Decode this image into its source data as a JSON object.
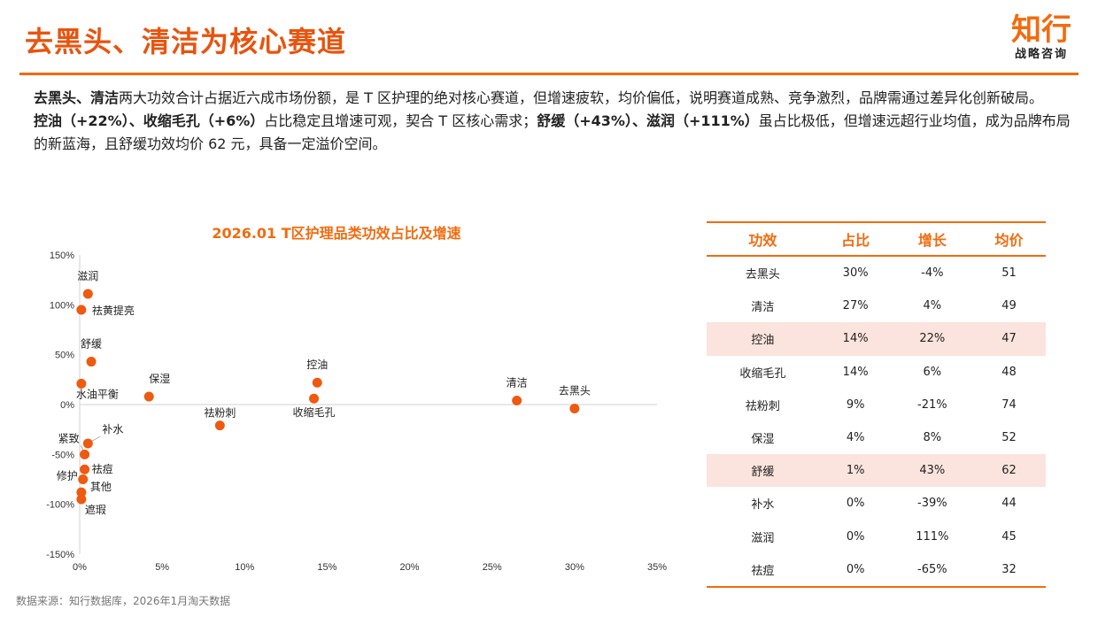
{
  "page": {
    "title": "去黑头、清洁为核心赛道",
    "logo_main": "知行",
    "logo_sub": "战略咨询",
    "summary": {
      "p1_bold": "去黑头、清洁",
      "p1_text": "两大功效合计占据近六成市场份额，是 T 区护理的绝对核心赛道，但增速疲软，均价偏低，说明赛道成熟、竞争激烈，品牌需通过差异化创新破局。",
      "p2_bold1": "控油（+22%）、收缩毛孔（+6%）",
      "p2_text1": "占比稳定且增速可观，契合 T 区核心需求；",
      "p2_bold2": "舒缓（+43%）、滋润（+111%）",
      "p2_text2": "虽占比极低，但增速远超行业均值，成为品牌布局的新蓝海，且舒缓功效均价 62 元，具备一定溢价空间。"
    },
    "source": "数据来源：知行数据库，2026年1月淘天数据"
  },
  "colors": {
    "accent": "#f26b0f",
    "title": "#e8540f",
    "dot": "#ee5a10",
    "highlight_row": "#fbe4dd"
  },
  "chart_data": {
    "type": "scatter",
    "title": "2026.01 T区护理品类功效占比及增速",
    "xlabel": "",
    "ylabel": "",
    "xlim": [
      0,
      0.35
    ],
    "ylim": [
      -1.5,
      1.5
    ],
    "x_ticks": [
      0,
      0.05,
      0.1,
      0.15,
      0.2,
      0.25,
      0.3,
      0.35
    ],
    "x_tick_labels": [
      "0%",
      "5%",
      "10%",
      "15%",
      "20%",
      "25%",
      "30%",
      "35%"
    ],
    "y_ticks": [
      1.5,
      1.0,
      0.5,
      0,
      -0.5,
      -1.0,
      -1.5
    ],
    "y_tick_labels": [
      "150%",
      "100%",
      "50%",
      "0%",
      "-50%",
      "-100%",
      "-150%"
    ],
    "points": [
      {
        "label": "去黑头",
        "x": 0.3,
        "y": -0.04
      },
      {
        "label": "清洁",
        "x": 0.265,
        "y": 0.04
      },
      {
        "label": "控油",
        "x": 0.144,
        "y": 0.22
      },
      {
        "label": "收缩毛孔",
        "x": 0.142,
        "y": 0.06
      },
      {
        "label": "祛粉刺",
        "x": 0.085,
        "y": -0.21
      },
      {
        "label": "保湿",
        "x": 0.042,
        "y": 0.08
      },
      {
        "label": "舒缓",
        "x": 0.007,
        "y": 0.43
      },
      {
        "label": "滋润",
        "x": 0.005,
        "y": 1.11
      },
      {
        "label": "祛黄提亮",
        "x": 0.001,
        "y": 0.95
      },
      {
        "label": "水油平衡",
        "x": 0.001,
        "y": 0.21
      },
      {
        "label": "补水",
        "x": 0.005,
        "y": -0.39
      },
      {
        "label": "紧致",
        "x": 0.003,
        "y": -0.5
      },
      {
        "label": "祛痘",
        "x": 0.003,
        "y": -0.65
      },
      {
        "label": "修护",
        "x": 0.002,
        "y": -0.75
      },
      {
        "label": "其他",
        "x": 0.001,
        "y": -0.88
      },
      {
        "label": "遮瑕",
        "x": 0.001,
        "y": -0.95
      }
    ]
  },
  "table": {
    "headers": [
      "功效",
      "占比",
      "增长",
      "均价"
    ],
    "rows": [
      {
        "cells": [
          "去黑头",
          "30%",
          "-4%",
          "51"
        ],
        "highlight": false
      },
      {
        "cells": [
          "清洁",
          "27%",
          "4%",
          "49"
        ],
        "highlight": false
      },
      {
        "cells": [
          "控油",
          "14%",
          "22%",
          "47"
        ],
        "highlight": true
      },
      {
        "cells": [
          "收缩毛孔",
          "14%",
          "6%",
          "48"
        ],
        "highlight": false
      },
      {
        "cells": [
          "祛粉刺",
          "9%",
          "-21%",
          "74"
        ],
        "highlight": false
      },
      {
        "cells": [
          "保湿",
          "4%",
          "8%",
          "52"
        ],
        "highlight": false
      },
      {
        "cells": [
          "舒缓",
          "1%",
          "43%",
          "62"
        ],
        "highlight": true
      },
      {
        "cells": [
          "补水",
          "0%",
          "-39%",
          "44"
        ],
        "highlight": false
      },
      {
        "cells": [
          "滋润",
          "0%",
          "111%",
          "45"
        ],
        "highlight": false
      },
      {
        "cells": [
          "祛痘",
          "0%",
          "-65%",
          "32"
        ],
        "highlight": false
      }
    ]
  }
}
